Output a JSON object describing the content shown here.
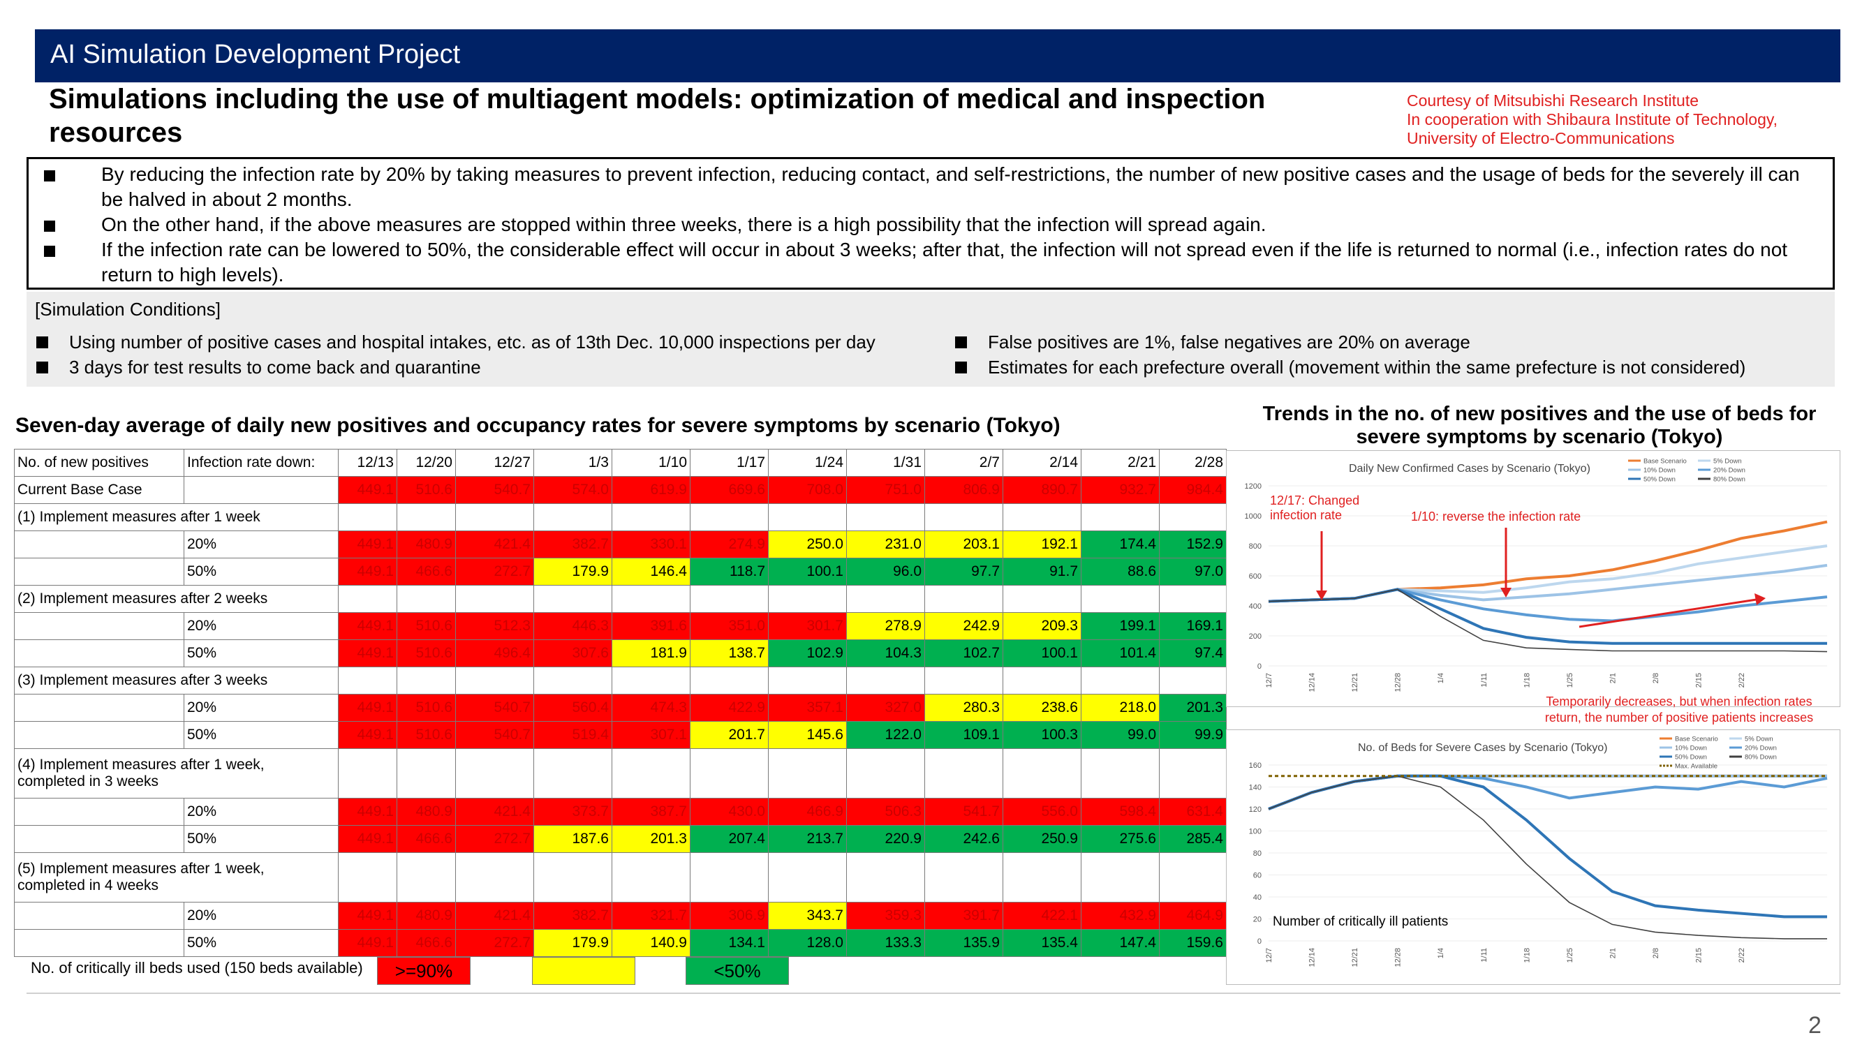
{
  "header": {
    "title": "AI Simulation Development Project"
  },
  "subtitle": "Simulations including the use of multiagent models: optimization of medical and inspection resources",
  "courtesy": [
    "Courtesy of Mitsubishi Research Institute",
    "In cooperation with Shibaura Institute of Technology,",
    "University of Electro-Communications"
  ],
  "summary": [
    "By reducing the infection rate by 20% by taking measures to prevent infection, reducing contact, and self-restrictions, the number of new positive cases and the usage of beds for the severely ill can be halved in about 2 months.",
    "On the other hand, if the above measures are stopped within three weeks, there is a high possibility that the infection will spread again.",
    "If the infection rate can be lowered to 50%, the considerable effect will occur in about 3 weeks; after that, the infection will not spread even if the life is returned to normal (i.e., infection rates do not return to high levels)."
  ],
  "conditions": {
    "title": "[Simulation Conditions]",
    "items": [
      "Using number of positive cases and hospital intakes, etc. as of 13th Dec. 10,000 inspections per day",
      "3 days for test results to come back and quarantine",
      "False positives are 1%, false negatives are 20% on average",
      "Estimates for each prefecture overall (movement within the same prefecture is not considered)"
    ]
  },
  "table": {
    "title": "Seven-day average of daily new positives and occupancy rates for severe symptoms by scenario (Tokyo)",
    "head_label": "No. of new positives",
    "head_sub": "Infection rate down:",
    "dates": [
      "12/13",
      "12/20",
      "12/27",
      "1/3",
      "1/10",
      "1/17",
      "1/24",
      "1/31",
      "2/7",
      "2/14",
      "2/21",
      "2/28"
    ],
    "base_label": "Current Base Case",
    "base_values": [
      "449.1",
      "510.6",
      "540.7",
      "574.0",
      "619.9",
      "669.6",
      "708.0",
      "751.0",
      "806.9",
      "890.7",
      "932.7",
      "984.4"
    ],
    "base_colors": [
      "r",
      "r",
      "r",
      "r",
      "r",
      "r",
      "r",
      "r",
      "r",
      "r",
      "r",
      "r"
    ],
    "groups": [
      {
        "label": "(1) Implement measures after 1 week",
        "rows": [
          {
            "label": "20%",
            "values": [
              "449.1",
              "480.9",
              "421.4",
              "382.7",
              "330.1",
              "274.9",
              "250.0",
              "231.0",
              "203.1",
              "192.1",
              "174.4",
              "152.9"
            ],
            "colors": [
              "r",
              "r",
              "r",
              "r",
              "r",
              "r",
              "y",
              "y",
              "y",
              "y",
              "g",
              "g"
            ]
          },
          {
            "label": "50%",
            "values": [
              "449.1",
              "466.6",
              "272.7",
              "179.9",
              "146.4",
              "118.7",
              "100.1",
              "96.0",
              "97.7",
              "91.7",
              "88.6",
              "97.0"
            ],
            "colors": [
              "r",
              "r",
              "r",
              "y",
              "y",
              "g",
              "g",
              "g",
              "g",
              "g",
              "g",
              "g"
            ]
          }
        ]
      },
      {
        "label": "(2) Implement measures after 2 weeks",
        "rows": [
          {
            "label": "20%",
            "values": [
              "449.1",
              "510.6",
              "512.3",
              "446.3",
              "391.6",
              "351.0",
              "301.7",
              "278.9",
              "242.9",
              "209.3",
              "199.1",
              "169.1"
            ],
            "colors": [
              "r",
              "r",
              "r",
              "r",
              "r",
              "r",
              "r",
              "y",
              "y",
              "y",
              "g",
              "g"
            ]
          },
          {
            "label": "50%",
            "values": [
              "449.1",
              "510.6",
              "496.4",
              "307.6",
              "181.9",
              "138.7",
              "102.9",
              "104.3",
              "102.7",
              "100.1",
              "101.4",
              "97.4"
            ],
            "colors": [
              "r",
              "r",
              "r",
              "r",
              "y",
              "y",
              "g",
              "g",
              "g",
              "g",
              "g",
              "g"
            ]
          }
        ]
      },
      {
        "label": "(3) Implement measures after 3 weeks",
        "rows": [
          {
            "label": "20%",
            "values": [
              "449.1",
              "510.6",
              "540.7",
              "560.4",
              "474.3",
              "422.9",
              "357.1",
              "327.0",
              "280.3",
              "238.6",
              "218.0",
              "201.3"
            ],
            "colors": [
              "r",
              "r",
              "r",
              "r",
              "r",
              "r",
              "r",
              "r",
              "y",
              "y",
              "y",
              "g"
            ]
          },
          {
            "label": "50%",
            "values": [
              "449.1",
              "510.6",
              "540.7",
              "519.4",
              "307.1",
              "201.7",
              "145.6",
              "122.0",
              "109.1",
              "100.3",
              "99.0",
              "99.9"
            ],
            "colors": [
              "r",
              "r",
              "r",
              "r",
              "r",
              "y",
              "y",
              "g",
              "g",
              "g",
              "g",
              "g"
            ]
          }
        ]
      },
      {
        "label": "(4) Implement measures after 1 week, completed in 3 weeks",
        "tall": true,
        "rows": [
          {
            "label": "20%",
            "values": [
              "449.1",
              "480.9",
              "421.4",
              "373.7",
              "387.7",
              "430.0",
              "466.9",
              "506.3",
              "541.7",
              "556.0",
              "598.4",
              "631.4"
            ],
            "colors": [
              "r",
              "r",
              "r",
              "r",
              "r",
              "r",
              "r",
              "r",
              "r",
              "r",
              "r",
              "r"
            ]
          },
          {
            "label": "50%",
            "values": [
              "449.1",
              "466.6",
              "272.7",
              "187.6",
              "201.3",
              "207.4",
              "213.7",
              "220.9",
              "242.6",
              "250.9",
              "275.6",
              "285.4"
            ],
            "colors": [
              "r",
              "r",
              "r",
              "y",
              "y",
              "g",
              "g",
              "g",
              "g",
              "g",
              "g",
              "g"
            ]
          }
        ]
      },
      {
        "label": "(5) Implement measures after 1 week, completed in 4 weeks",
        "tall": true,
        "rows": [
          {
            "label": "20%",
            "values": [
              "449.1",
              "480.9",
              "421.4",
              "382.7",
              "321.7",
              "306.9",
              "343.7",
              "359.3",
              "391.7",
              "422.1",
              "432.9",
              "464.9"
            ],
            "colors": [
              "r",
              "r",
              "r",
              "r",
              "r",
              "r",
              "y",
              "r",
              "r",
              "r",
              "r",
              "r"
            ]
          },
          {
            "label": "50%",
            "values": [
              "449.1",
              "466.6",
              "272.7",
              "179.9",
              "140.9",
              "134.1",
              "128.0",
              "133.3",
              "135.9",
              "135.4",
              "147.4",
              "159.6"
            ],
            "colors": [
              "r",
              "r",
              "r",
              "y",
              "y",
              "g",
              "g",
              "g",
              "g",
              "g",
              "g",
              "g"
            ]
          }
        ]
      }
    ]
  },
  "legend": {
    "label": "No. of critically ill beds used (150 beds available)",
    "red": ">=90%",
    "yellow": "",
    "green": "<50%"
  },
  "right_title": "Trends in the no. of new positives and the use of beds for severe symptoms by scenario (Tokyo)",
  "colors": {
    "header": "#002266",
    "red": "#ff0000",
    "yellow": "#ffff00",
    "green": "#00b050",
    "base": "#ed7d31",
    "d5": "#bdd7ee",
    "d10": "#9dc3e6",
    "d20": "#5b9bd5",
    "d50": "#2e75b6",
    "d80": "#404040"
  },
  "chart_data": [
    {
      "type": "line",
      "title": "Daily New Confirmed Cases by Scenario (Tokyo)",
      "x": [
        "12/7",
        "12/14",
        "12/21",
        "12/28",
        "1/4",
        "1/11",
        "1/18",
        "1/25",
        "2/1",
        "2/8",
        "2/15",
        "2/22"
      ],
      "ylim": [
        0,
        1200
      ],
      "yticks": [
        "0",
        "200",
        "400",
        "600",
        "800",
        "1000",
        "1200"
      ],
      "legend": [
        "Base Scenario",
        "5% Down",
        "10% Down",
        "20% Down",
        "50% Down",
        "80% Down"
      ],
      "series": [
        {
          "name": "Base Scenario",
          "key": "base",
          "x": [
            0,
            7,
            14,
            21,
            28,
            35,
            42,
            49,
            56,
            63,
            70,
            77,
            84,
            91
          ],
          "y": [
            430,
            440,
            450,
            510,
            520,
            540,
            580,
            600,
            640,
            700,
            770,
            850,
            900,
            960
          ]
        },
        {
          "name": "5% Down",
          "key": "d5",
          "x": [
            0,
            7,
            14,
            21,
            28,
            35,
            42,
            49,
            56,
            63,
            70,
            77,
            84,
            91
          ],
          "y": [
            430,
            440,
            450,
            510,
            500,
            490,
            520,
            560,
            580,
            620,
            680,
            720,
            760,
            800
          ]
        },
        {
          "name": "10% Down",
          "key": "d10",
          "x": [
            0,
            7,
            14,
            21,
            28,
            35,
            42,
            49,
            56,
            63,
            70,
            77,
            84,
            91
          ],
          "y": [
            430,
            440,
            450,
            510,
            470,
            440,
            460,
            480,
            510,
            540,
            570,
            600,
            630,
            670
          ]
        },
        {
          "name": "20% Down",
          "key": "d20",
          "x": [
            0,
            7,
            14,
            21,
            28,
            35,
            42,
            49,
            56,
            63,
            70,
            77,
            84,
            91
          ],
          "y": [
            430,
            440,
            450,
            510,
            440,
            380,
            340,
            310,
            300,
            330,
            360,
            400,
            430,
            460
          ]
        },
        {
          "name": "50% Down",
          "key": "d50",
          "x": [
            0,
            7,
            14,
            21,
            28,
            35,
            42,
            49,
            56,
            63,
            70,
            77,
            84,
            91
          ],
          "y": [
            430,
            440,
            450,
            510,
            380,
            250,
            190,
            160,
            150,
            150,
            150,
            150,
            150,
            150
          ]
        },
        {
          "name": "80% Down",
          "key": "d80",
          "x": [
            0,
            7,
            14,
            21,
            28,
            35,
            42,
            49,
            56,
            63,
            70,
            77,
            84,
            91
          ],
          "y": [
            430,
            440,
            450,
            510,
            330,
            170,
            120,
            110,
            100,
            100,
            100,
            100,
            100,
            95
          ]
        }
      ],
      "annotations": [
        "12/17: Changed infection rate",
        "1/10: reverse the infection rate",
        "Temporarily decreases, but when infection rates return, the number of positive patients increases"
      ]
    },
    {
      "type": "line",
      "title": "No. of Beds for Severe Cases by Scenario (Tokyo)",
      "x": [
        "12/7",
        "12/14",
        "12/21",
        "12/28",
        "1/4",
        "1/11",
        "1/18",
        "1/25",
        "2/1",
        "2/8",
        "2/15",
        "2/22"
      ],
      "ylim": [
        0,
        160
      ],
      "yticks": [
        "0",
        "20",
        "40",
        "60",
        "80",
        "100",
        "120",
        "140",
        "160"
      ],
      "legend": [
        "Base Scenario",
        "5% Down",
        "10% Down",
        "20% Down",
        "50% Down",
        "80% Down",
        "Max. Available"
      ],
      "series": [
        {
          "name": "Base Scenario",
          "key": "base",
          "x": [
            0,
            7,
            14,
            21,
            28,
            35,
            42,
            49,
            56,
            63,
            70,
            77,
            84,
            91
          ],
          "y": [
            120,
            135,
            145,
            150,
            150,
            150,
            150,
            150,
            150,
            150,
            150,
            150,
            150,
            150
          ]
        },
        {
          "name": "5% Down",
          "key": "d5",
          "x": [
            0,
            7,
            14,
            21,
            28,
            35,
            42,
            49,
            56,
            63,
            70,
            77,
            84,
            91
          ],
          "y": [
            120,
            135,
            145,
            150,
            150,
            150,
            150,
            150,
            150,
            150,
            150,
            150,
            150,
            150
          ]
        },
        {
          "name": "10% Down",
          "key": "d10",
          "x": [
            0,
            7,
            14,
            21,
            28,
            35,
            42,
            49,
            56,
            63,
            70,
            77,
            84,
            91
          ],
          "y": [
            120,
            135,
            145,
            150,
            150,
            150,
            150,
            150,
            150,
            150,
            150,
            150,
            150,
            150
          ]
        },
        {
          "name": "20% Down",
          "key": "d20",
          "x": [
            0,
            7,
            14,
            21,
            28,
            35,
            42,
            49,
            56,
            63,
            70,
            77,
            84,
            91
          ],
          "y": [
            120,
            135,
            145,
            150,
            150,
            148,
            140,
            130,
            135,
            140,
            138,
            145,
            140,
            148
          ]
        },
        {
          "name": "50% Down",
          "key": "d50",
          "x": [
            0,
            7,
            14,
            21,
            28,
            35,
            42,
            49,
            56,
            63,
            70,
            77,
            84,
            91
          ],
          "y": [
            120,
            135,
            145,
            150,
            150,
            140,
            110,
            75,
            45,
            32,
            28,
            25,
            22,
            22
          ]
        },
        {
          "name": "80% Down",
          "key": "d80",
          "x": [
            0,
            7,
            14,
            21,
            28,
            35,
            42,
            49,
            56,
            63,
            70,
            77,
            84,
            91
          ],
          "y": [
            120,
            135,
            145,
            150,
            140,
            110,
            70,
            35,
            15,
            8,
            5,
            3,
            2,
            2
          ]
        },
        {
          "name": "Max. Available",
          "key": "max",
          "x": [
            0,
            91
          ],
          "y": [
            150,
            150
          ]
        }
      ],
      "annotations": [
        "Number of critically ill patients"
      ]
    }
  ],
  "page_number": "2"
}
